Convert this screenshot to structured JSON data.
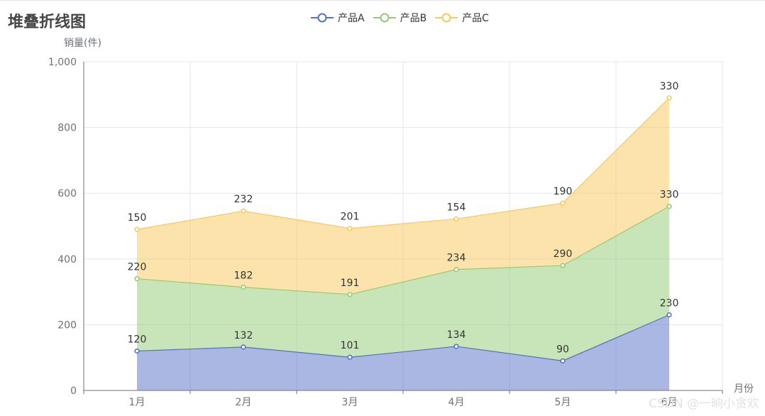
{
  "title": "堆叠折线图",
  "watermark": "CSDN @一晌小贪欢",
  "colors": {
    "series_a": "#5470c6",
    "series_b": "#91cc75",
    "series_c": "#fac858",
    "grid": "#e0e6f1",
    "axis": "#6e7079"
  },
  "chart_data": {
    "type": "area",
    "stacked": true,
    "title": "堆叠折线图",
    "xlabel": "月份",
    "ylabel": "销量(件)",
    "categories": [
      "1月",
      "2月",
      "3月",
      "4月",
      "5月",
      "6月"
    ],
    "ylim": [
      0,
      1000
    ],
    "yticks": [
      0,
      200,
      400,
      600,
      800,
      1000
    ],
    "ytick_labels": [
      "0",
      "200",
      "400",
      "600",
      "800",
      "1,000"
    ],
    "grid": true,
    "legend_position": "top-center",
    "series": [
      {
        "name": "产品A",
        "values": [
          120,
          132,
          101,
          134,
          90,
          230
        ]
      },
      {
        "name": "产品B",
        "values": [
          220,
          182,
          191,
          234,
          290,
          330
        ]
      },
      {
        "name": "产品C",
        "values": [
          150,
          232,
          201,
          154,
          190,
          330
        ]
      }
    ]
  }
}
